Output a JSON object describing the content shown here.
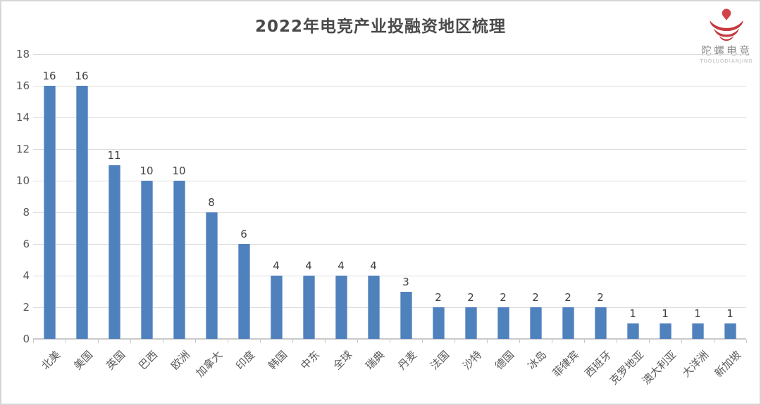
{
  "title": "2022年电竞产业投融资地区梳理",
  "logo": {
    "name": "陀螺电竞",
    "subtitle": "TUOLUODIANJING",
    "color": "#c5393f"
  },
  "chart_data": {
    "type": "bar",
    "title": "2022年电竞产业投融资地区梳理",
    "categories": [
      "北美",
      "美国",
      "英国",
      "巴西",
      "欧洲",
      "加拿大",
      "印度",
      "韩国",
      "中东",
      "全球",
      "瑞典",
      "丹麦",
      "法国",
      "沙特",
      "德国",
      "冰岛",
      "菲律宾",
      "西班牙",
      "克罗地亚",
      "澳大利亚",
      "大洋洲",
      "新加坡"
    ],
    "values": [
      16,
      16,
      11,
      10,
      10,
      8,
      6,
      4,
      4,
      4,
      4,
      3,
      2,
      2,
      2,
      2,
      2,
      2,
      1,
      1,
      1,
      1
    ],
    "xlabel": "",
    "ylabel": "",
    "ylim": [
      0,
      18
    ],
    "ytick_step": 2,
    "yticks": [
      0,
      2,
      4,
      6,
      8,
      10,
      12,
      14,
      16,
      18
    ],
    "grid": true,
    "data_labels": true,
    "legend": "none",
    "bar_color": "#4f81bd",
    "grid_color": "#dcdcdc",
    "label_color": "#595959"
  }
}
